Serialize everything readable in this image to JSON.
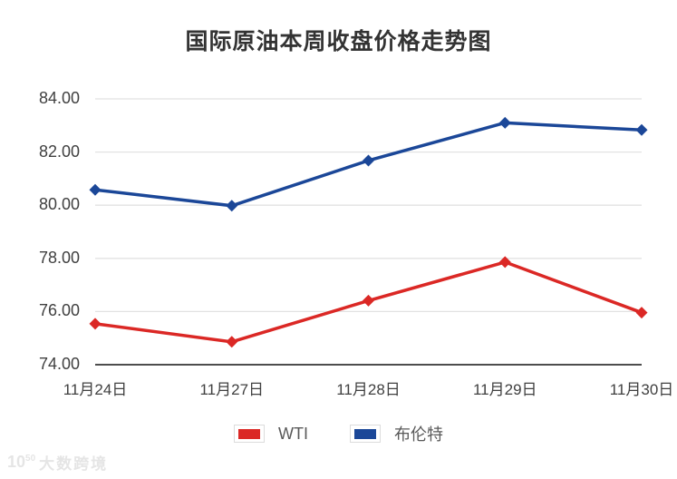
{
  "chart_data": {
    "type": "line",
    "title": "国际原油本周收盘价格走势图",
    "categories": [
      "11月24日",
      "11月27日",
      "11月28日",
      "11月29日",
      "11月30日"
    ],
    "series": [
      {
        "name": "WTI",
        "color": "#db2825",
        "values": [
          75.54,
          74.86,
          76.41,
          77.86,
          75.96
        ]
      },
      {
        "name": "布伦特",
        "color": "#1b4798",
        "values": [
          80.58,
          79.98,
          81.68,
          83.1,
          82.83
        ]
      }
    ],
    "xlabel": "",
    "ylabel": "",
    "ylim": [
      74,
      84
    ],
    "ytick_step": 2,
    "ytick_labels": [
      "84.00",
      "82.00",
      "80.00",
      "78.00",
      "76.00",
      "74.00"
    ],
    "grid": true,
    "legend_position": "bottom",
    "marker": "diamond"
  },
  "colors": {
    "wti_red": "#db2825",
    "brent_blue": "#1b4798",
    "gridline": "#e2e2e2",
    "axis_line": "#4d4d4d",
    "title_text": "#333333",
    "tick_text": "#404040",
    "legend_text": "#595959",
    "watermark": "#e5e5e5"
  },
  "watermark": {
    "logo_base": "10",
    "logo_exp": "50",
    "text": "大数跨境"
  }
}
